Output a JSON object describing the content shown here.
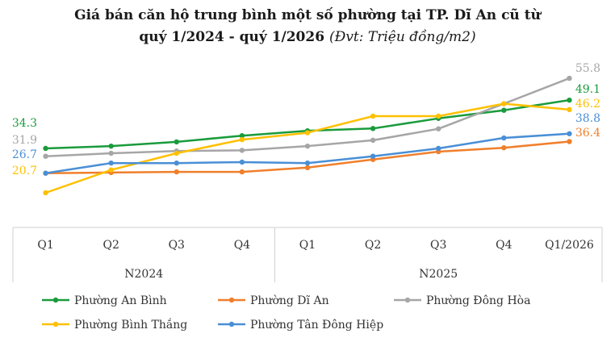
{
  "title": {
    "line1": "Giá bán căn hộ trung bình một số phường tại TP. Dĩ An cũ từ",
    "line2": "quý 1/2024 - quý 1/2026",
    "unit": "(Đvt: Triệu đồng/m2)"
  },
  "chart_data": {
    "type": "line",
    "title": "Giá bán căn hộ trung bình một số phường tại TP. Dĩ An cũ từ quý 1/2024 - quý 1/2026 (Đvt: Triệu đồng/m2)",
    "categories": [
      "Q1",
      "Q2",
      "Q3",
      "Q4",
      "Q1",
      "Q2",
      "Q3",
      "Q4",
      "Q1/2026"
    ],
    "groups": [
      {
        "label": "N2024",
        "span": 4
      },
      {
        "label": "N2025",
        "span": 5
      }
    ],
    "ylim": [
      15,
      62
    ],
    "grid": false,
    "legend_position": "bottom",
    "series": [
      {
        "name": "Phường An Bình",
        "color": "#1a9b3c",
        "values": [
          34.3,
          35.0,
          36.3,
          38.2,
          39.7,
          40.4,
          43.5,
          46.0,
          49.1
        ],
        "labels": {
          "0": "34.3",
          "8": "49.1"
        }
      },
      {
        "name": "Phường Dĩ An",
        "color": "#f07f2b",
        "values": [
          26.7,
          26.9,
          27.1,
          27.1,
          28.4,
          30.9,
          33.3,
          34.5,
          36.4
        ],
        "labels": {
          "8": "36.4"
        }
      },
      {
        "name": "Phường Đông Hòa",
        "color": "#a6a6a6",
        "values": [
          31.9,
          32.8,
          33.5,
          33.7,
          35.0,
          36.8,
          40.3,
          48.0,
          55.8
        ],
        "labels": {
          "0": "31.9",
          "8": "55.8"
        }
      },
      {
        "name": "Phường Bình Thắng",
        "color": "#ffc000",
        "values": [
          20.7,
          27.7,
          32.8,
          37.0,
          39.1,
          44.2,
          44.2,
          48.0,
          46.2
        ],
        "labels": {
          "0": "20.7",
          "8": "46.2"
        }
      },
      {
        "name": "Phường Tân Đông Hiệp",
        "color": "#4a8fd6",
        "values": [
          26.7,
          29.8,
          29.8,
          30.1,
          29.8,
          31.9,
          34.3,
          37.5,
          38.8
        ],
        "labels": {
          "0": "26.7",
          "8": "38.8"
        }
      }
    ]
  }
}
